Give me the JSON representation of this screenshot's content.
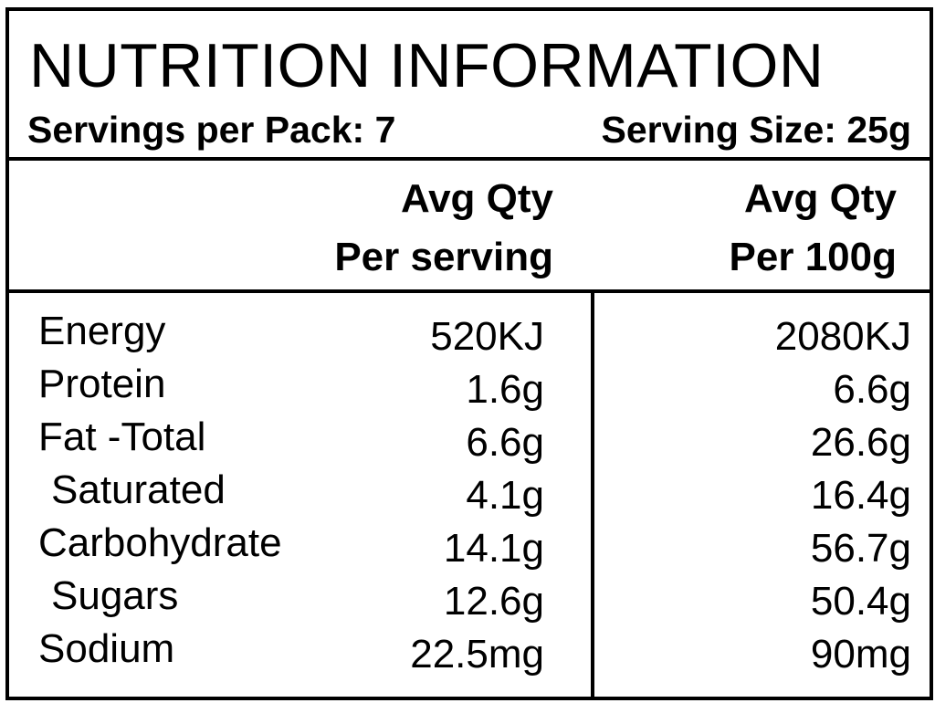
{
  "label": {
    "title": "NUTRITION INFORMATION",
    "servings_per_pack": "Servings per Pack: 7",
    "serving_size": "Serving Size: 25g"
  },
  "columns": {
    "per_serving_line1": "Avg Qty",
    "per_serving_line2": "Per serving",
    "per_100g_line1": "Avg Qty",
    "per_100g_line2": "Per 100g"
  },
  "nutrients": [
    {
      "name": "Energy",
      "per_serving": "520KJ",
      "per_100g": "2080KJ"
    },
    {
      "name": "Protein",
      "per_serving": "1.6g",
      "per_100g": "6.6g"
    },
    {
      "name": "Fat -Total",
      "per_serving": "6.6g",
      "per_100g": "26.6g"
    },
    {
      "name": "Saturated",
      "per_serving": "4.1g",
      "per_100g": "16.4g"
    },
    {
      "name": "Carbohydrate",
      "per_serving": "14.1g",
      "per_100g": "56.7g"
    },
    {
      "name": "Sugars",
      "per_serving": "12.6g",
      "per_100g": "50.4g"
    },
    {
      "name": "Sodium",
      "per_serving": "22.5mg",
      "per_100g": "90mg"
    }
  ]
}
